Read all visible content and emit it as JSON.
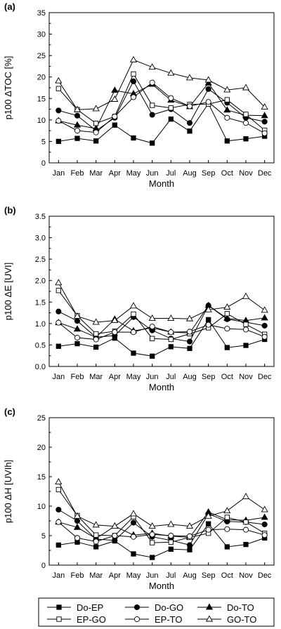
{
  "chart_data": [
    {
      "type": "line",
      "panel_label": "(a)",
      "xlabel": "Month",
      "ylabel": "p100 ΔTOC [%]",
      "ylim": [
        0,
        35
      ],
      "yticks": [
        0,
        5,
        10,
        15,
        20,
        25,
        30,
        35
      ],
      "categories": [
        "Jan",
        "Feb",
        "Mar",
        "Apr",
        "May",
        "Jun",
        "Jul",
        "Aug",
        "Sep",
        "Oct",
        "Nov",
        "Dec"
      ],
      "series": [
        {
          "name": "Do-EP",
          "values": [
            5.0,
            5.7,
            5.1,
            8.8,
            5.8,
            4.6,
            10.2,
            7.4,
            13.8,
            5.1,
            5.6,
            6.2
          ]
        },
        {
          "name": "Do-GO",
          "values": [
            12.2,
            11.0,
            7.5,
            10.5,
            19.0,
            11.2,
            12.5,
            9.3,
            17.2,
            14.0,
            10.5,
            9.6
          ]
        },
        {
          "name": "Do-TO",
          "values": [
            9.8,
            8.8,
            8.0,
            16.9,
            16.1,
            18.3,
            14.6,
            13.1,
            18.6,
            12.3,
            11.1,
            11.0
          ]
        },
        {
          "name": "EP-GO",
          "values": [
            17.3,
            12.4,
            9.2,
            10.8,
            20.7,
            13.4,
            12.8,
            13.6,
            13.7,
            14.7,
            11.3,
            7.6
          ]
        },
        {
          "name": "EP-TO",
          "values": [
            9.8,
            7.5,
            7.1,
            10.8,
            15.3,
            18.7,
            15.1,
            13.2,
            14.2,
            10.5,
            9.3,
            6.9
          ]
        },
        {
          "name": "GO-TO",
          "values": [
            19.1,
            12.4,
            12.6,
            14.8,
            24.0,
            22.3,
            20.9,
            19.8,
            19.3,
            17.0,
            17.5,
            13.0
          ]
        }
      ]
    },
    {
      "type": "line",
      "panel_label": "(b)",
      "xlabel": "Month",
      "ylabel": "p100 ΔE [UVI]",
      "ylim": [
        0,
        3.5
      ],
      "yticks": [
        "0.0",
        "0.5",
        "1.0",
        "1.5",
        "2.0",
        "2.5",
        "3.0",
        "3.5"
      ],
      "categories": [
        "Jan",
        "Feb",
        "Mar",
        "Apr",
        "May",
        "Jun",
        "Jul",
        "Aug",
        "Sep",
        "Oct",
        "Nov",
        "Dec"
      ],
      "series": [
        {
          "name": "Do-EP",
          "values": [
            0.47,
            0.53,
            0.45,
            0.66,
            0.31,
            0.24,
            0.46,
            0.42,
            1.09,
            0.44,
            0.49,
            0.63
          ]
        },
        {
          "name": "Do-GO",
          "values": [
            1.28,
            1.06,
            0.68,
            0.72,
            1.15,
            0.84,
            0.65,
            0.58,
            1.42,
            1.1,
            1.03,
            0.95
          ]
        },
        {
          "name": "Do-TO",
          "values": [
            1.02,
            0.87,
            0.68,
            1.1,
            0.83,
            0.9,
            0.8,
            0.78,
            1.42,
            1.12,
            1.07,
            1.13
          ]
        },
        {
          "name": "EP-GO",
          "values": [
            1.77,
            1.18,
            0.76,
            0.82,
            1.22,
            0.65,
            0.63,
            0.76,
            0.9,
            1.23,
            0.98,
            0.75
          ]
        },
        {
          "name": "EP-TO",
          "values": [
            1.02,
            0.67,
            0.63,
            0.8,
            0.8,
            0.93,
            0.8,
            0.81,
            0.97,
            0.88,
            0.86,
            0.69
          ]
        },
        {
          "name": "GO-TO",
          "values": [
            1.95,
            1.17,
            1.03,
            1.07,
            1.41,
            1.12,
            1.12,
            1.11,
            1.32,
            1.38,
            1.63,
            1.31
          ]
        }
      ]
    },
    {
      "type": "line",
      "panel_label": "(c)",
      "xlabel": "Month",
      "ylabel": "p100 ΔH [UVIh]",
      "ylim": [
        0,
        25
      ],
      "yticks": [
        0,
        5,
        10,
        15,
        20,
        25
      ],
      "categories": [
        "Jan",
        "Feb",
        "Mar",
        "Apr",
        "May",
        "Jun",
        "Jul",
        "Aug",
        "Sep",
        "Oct",
        "Nov",
        "Dec"
      ],
      "series": [
        {
          "name": "Do-EP",
          "values": [
            3.4,
            3.9,
            3.1,
            4.1,
            1.9,
            1.3,
            2.7,
            2.6,
            7.0,
            3.1,
            3.5,
            4.6
          ]
        },
        {
          "name": "Do-GO",
          "values": [
            9.4,
            7.5,
            4.4,
            4.2,
            7.2,
            4.8,
            4.2,
            3.4,
            8.7,
            7.4,
            7.3,
            6.9
          ]
        },
        {
          "name": "Do-TO",
          "values": [
            7.3,
            6.4,
            4.5,
            6.6,
            5.1,
            5.4,
            4.9,
            4.7,
            9.0,
            7.7,
            7.6,
            8.1
          ]
        },
        {
          "name": "EP-GO",
          "values": [
            12.8,
            8.4,
            5.1,
            5.0,
            8.2,
            3.8,
            3.9,
            4.7,
            5.4,
            8.1,
            7.3,
            5.4
          ]
        },
        {
          "name": "EP-TO",
          "values": [
            7.3,
            4.6,
            4.0,
            5.0,
            4.8,
            5.2,
            5.0,
            4.9,
            6.0,
            6.1,
            6.0,
            5.1
          ]
        },
        {
          "name": "GO-TO",
          "values": [
            14.1,
            8.3,
            6.8,
            6.6,
            8.7,
            6.6,
            6.9,
            6.6,
            8.3,
            9.2,
            11.6,
            9.4
          ]
        }
      ]
    }
  ],
  "legend": {
    "placement": "bottom",
    "items": [
      {
        "name": "Do-EP",
        "marker": "square-filled"
      },
      {
        "name": "Do-GO",
        "marker": "circle-filled"
      },
      {
        "name": "Do-TO",
        "marker": "triangle-filled"
      },
      {
        "name": "EP-GO",
        "marker": "square-open"
      },
      {
        "name": "EP-TO",
        "marker": "circle-open"
      },
      {
        "name": "GO-TO",
        "marker": "triangle-open"
      }
    ]
  }
}
